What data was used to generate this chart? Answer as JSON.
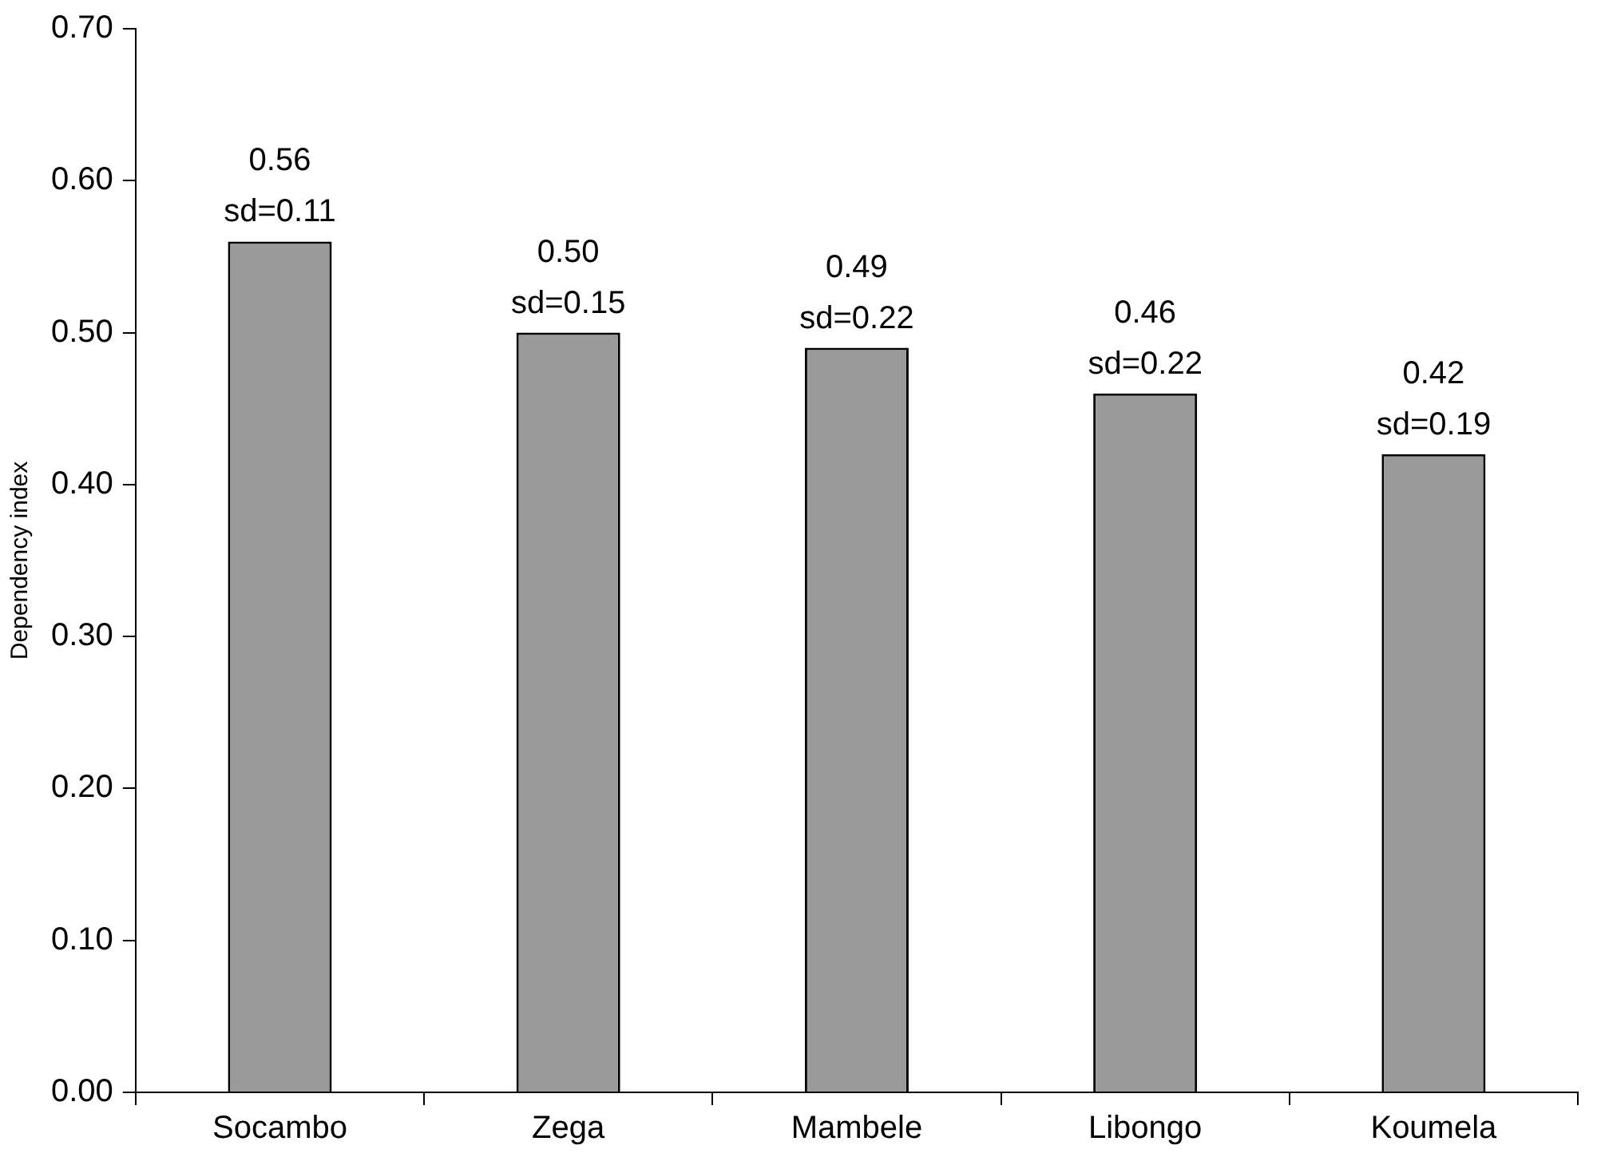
{
  "chart_data": {
    "type": "bar",
    "ylabel": "Dependency index",
    "categories": [
      "Socambo",
      "Zega",
      "Mambele",
      "Libongo",
      "Koumela"
    ],
    "values": [
      0.56,
      0.5,
      0.49,
      0.46,
      0.42
    ],
    "value_labels": [
      "0.56\nsd=0.11",
      "0.50\nsd=0.15",
      "0.49\nsd=0.22",
      "0.46\nsd=0.22",
      "0.42\nsd=0.19"
    ],
    "color": "#9a9a9a",
    "ylim": [
      0,
      0.7
    ],
    "yticks": [
      {
        "value": 0,
        "label": "0.00"
      },
      {
        "value": 0.1,
        "label": "0.10"
      },
      {
        "value": 0.2,
        "label": "0.20"
      },
      {
        "value": 0.3,
        "label": "0.30"
      },
      {
        "value": 0.4,
        "label": "0.40"
      },
      {
        "value": 0.5,
        "label": "0.50"
      },
      {
        "value": 0.6,
        "label": "0.60"
      },
      {
        "value": 0.7,
        "label": "0.70"
      }
    ],
    "grid": false,
    "legend": false
  }
}
